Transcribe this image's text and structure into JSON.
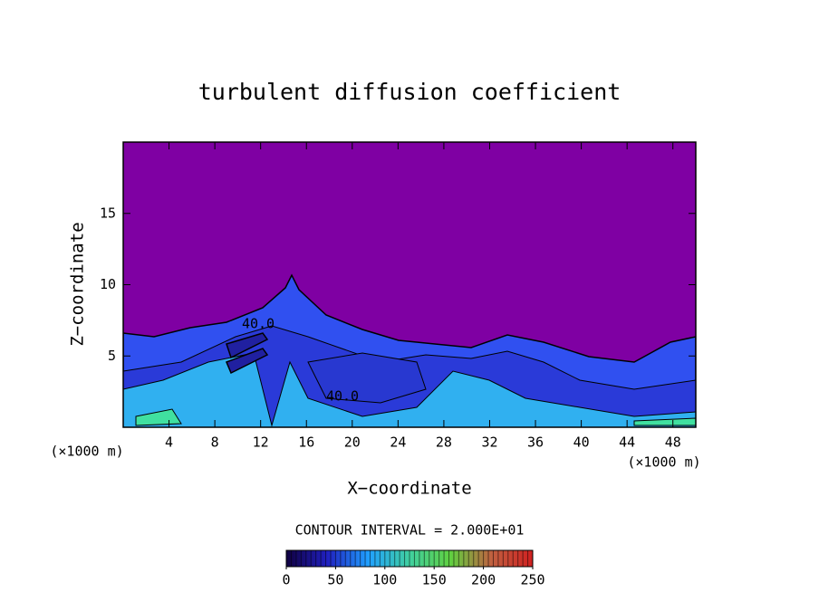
{
  "chart_data": {
    "type": "contour",
    "title": "turbulent diffusion coefficient",
    "x_label": "X−coordinate",
    "y_label": "Z−coordinate",
    "x_unit": "(×1000 m)",
    "y_unit": "(×1000 m)",
    "xlim": [
      0,
      50
    ],
    "ylim": [
      0,
      20
    ],
    "xticks": [
      4,
      8,
      12,
      16,
      20,
      24,
      28,
      32,
      36,
      40,
      44,
      48
    ],
    "yticks": [
      5,
      10,
      15
    ],
    "contour_labels": [
      "40.0",
      "40.0"
    ],
    "contour_interval": "CONTOUR INTERVAL = 2.000E+01",
    "colorbar": {
      "lim": [
        0,
        250
      ],
      "ticks": [
        0,
        50,
        100,
        150,
        200,
        250
      ],
      "colors": [
        "#100040",
        "#2020c0",
        "#20a0ff",
        "#40d0a0",
        "#60d040",
        "#c06040",
        "#d02020"
      ]
    }
  }
}
